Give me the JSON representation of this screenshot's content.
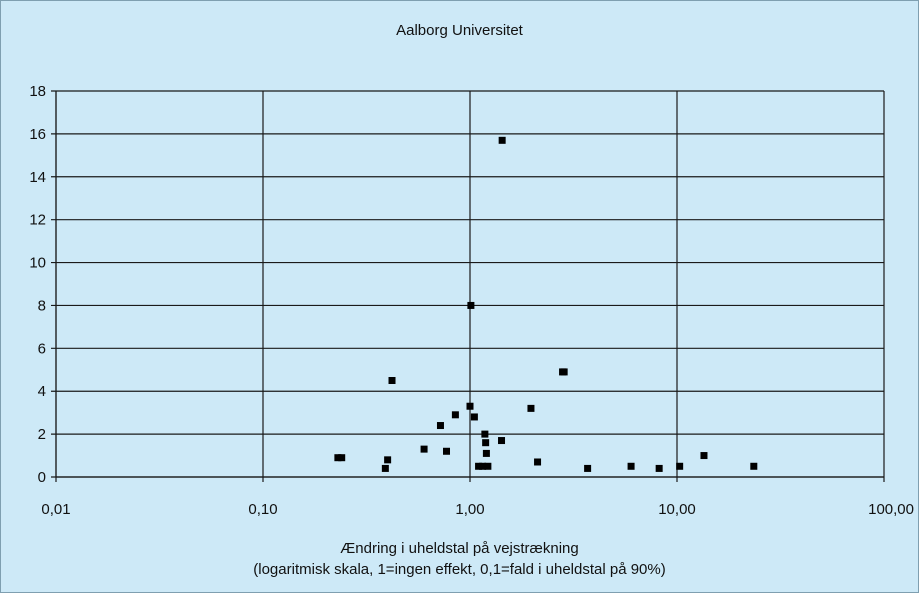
{
  "chart_data": {
    "type": "scatter",
    "title": "Aalborg Universitet",
    "xlabel_line1": "Ændring i uheldstal på vejstrækning",
    "xlabel_line2": "(logaritmisk skala, 1=ingen effekt, 0,1=fald i uheldstal på 90%)",
    "ylabel": "",
    "x_scale": "log",
    "xlim": [
      0.01,
      100
    ],
    "ylim": [
      0,
      18
    ],
    "x_ticks": [
      0.01,
      0.1,
      1,
      10,
      100
    ],
    "x_tick_labels": [
      "0,01",
      "0,10",
      "1,00",
      "10,00",
      "100,00"
    ],
    "y_ticks": [
      0,
      2,
      4,
      6,
      8,
      10,
      12,
      14,
      16,
      18
    ],
    "y_tick_labels": [
      "0",
      "2",
      "4",
      "6",
      "8",
      "10",
      "12",
      "14",
      "16",
      "18"
    ],
    "grid": true,
    "legend": "none",
    "marker_color": "#000000",
    "points": [
      {
        "x": 0.23,
        "y": 0.9
      },
      {
        "x": 0.24,
        "y": 0.9
      },
      {
        "x": 0.39,
        "y": 0.4
      },
      {
        "x": 0.4,
        "y": 0.8
      },
      {
        "x": 0.42,
        "y": 4.5
      },
      {
        "x": 0.6,
        "y": 1.3
      },
      {
        "x": 0.72,
        "y": 2.4
      },
      {
        "x": 0.77,
        "y": 1.2
      },
      {
        "x": 0.85,
        "y": 2.9
      },
      {
        "x": 1.0,
        "y": 3.3
      },
      {
        "x": 1.01,
        "y": 8.0
      },
      {
        "x": 1.05,
        "y": 2.8
      },
      {
        "x": 1.1,
        "y": 0.5
      },
      {
        "x": 1.15,
        "y": 0.5
      },
      {
        "x": 1.18,
        "y": 2.0
      },
      {
        "x": 1.19,
        "y": 1.6
      },
      {
        "x": 1.2,
        "y": 1.1
      },
      {
        "x": 1.22,
        "y": 0.5
      },
      {
        "x": 1.42,
        "y": 1.7
      },
      {
        "x": 1.43,
        "y": 15.7
      },
      {
        "x": 1.97,
        "y": 3.2
      },
      {
        "x": 2.12,
        "y": 0.7
      },
      {
        "x": 2.8,
        "y": 4.9
      },
      {
        "x": 2.85,
        "y": 4.9
      },
      {
        "x": 3.7,
        "y": 0.4
      },
      {
        "x": 6.0,
        "y": 0.5
      },
      {
        "x": 8.2,
        "y": 0.4
      },
      {
        "x": 10.3,
        "y": 0.5
      },
      {
        "x": 13.5,
        "y": 1.0
      },
      {
        "x": 23.5,
        "y": 0.5
      }
    ]
  }
}
